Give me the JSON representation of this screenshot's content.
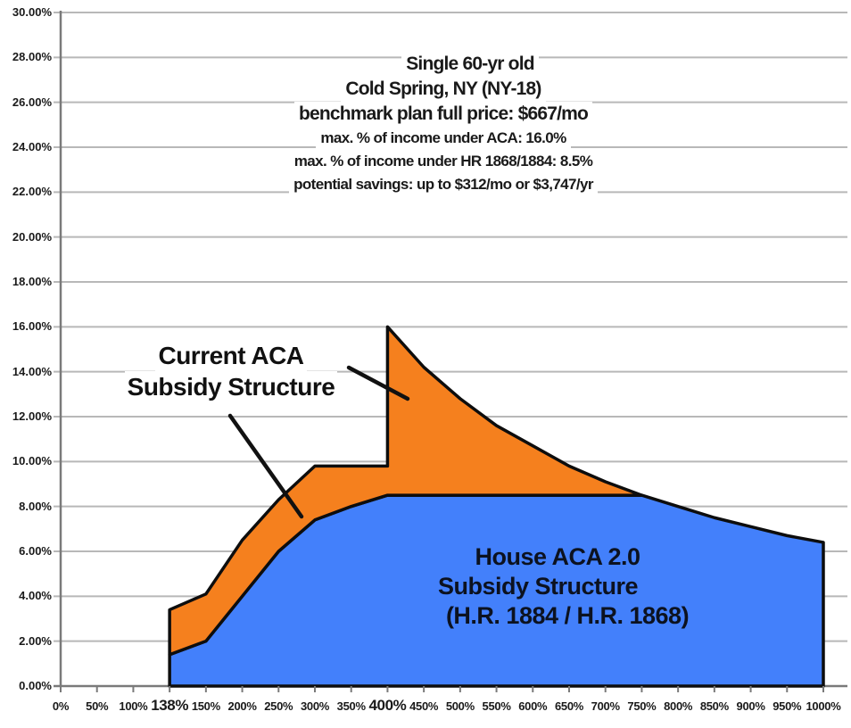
{
  "chart_data": {
    "type": "area",
    "title_lines": [
      "Single 60-yr old",
      "Cold Spring, NY (NY-18)",
      "benchmark plan full price: $667/mo",
      "max. % of income under ACA: 16.0%",
      "max. % of income under HR 1868/1884: 8.5%",
      "potential savings: up to $312/mo or $3,747/yr"
    ],
    "labels": {
      "current_aca": [
        "Current ACA",
        "Subsidy Structure"
      ],
      "house_aca": [
        "House ACA 2.0",
        "Subsidy Structure",
        "(H.R. 1884 / H.R. 1868)"
      ]
    },
    "y_axis": {
      "min": 0,
      "max": 30,
      "tick_step": 2,
      "tick_labels": [
        "0.00%",
        "2.00%",
        "4.00%",
        "6.00%",
        "8.00%",
        "10.00%",
        "12.00%",
        "14.00%",
        "16.00%",
        "18.00%",
        "20.00%",
        "22.00%",
        "24.00%",
        "26.00%",
        "28.00%",
        "30.00%"
      ],
      "grid": true
    },
    "x_axis": {
      "categories": [
        "0%",
        "50%",
        "100%",
        "138%",
        "150%",
        "200%",
        "250%",
        "300%",
        "350%",
        "400%",
        "450%",
        "500%",
        "550%",
        "600%",
        "650%",
        "700%",
        "750%",
        "800%",
        "850%",
        "900%",
        "950%",
        "1000%"
      ],
      "emphasized": [
        "138%",
        "400%"
      ]
    },
    "series": [
      {
        "name": "Current ACA Subsidy Structure",
        "color": "#F5801E",
        "points": [
          [
            "138%",
            3.4
          ],
          [
            "150%",
            4.1
          ],
          [
            "200%",
            6.5
          ],
          [
            "250%",
            8.3
          ],
          [
            "300%",
            9.8
          ],
          [
            "350%",
            9.8
          ],
          [
            "400%",
            9.8
          ],
          [
            "400%",
            16.0
          ],
          [
            "450%",
            14.2
          ],
          [
            "500%",
            12.8
          ],
          [
            "550%",
            11.6
          ],
          [
            "600%",
            10.7
          ],
          [
            "650%",
            9.8
          ],
          [
            "700%",
            9.1
          ],
          [
            "750%",
            8.5
          ]
        ]
      },
      {
        "name": "House ACA 2.0 Subsidy Structure (H.R. 1884 / H.R. 1868)",
        "color": "#4380FB",
        "points": [
          [
            "138%",
            1.4
          ],
          [
            "150%",
            2.0
          ],
          [
            "200%",
            4.0
          ],
          [
            "250%",
            6.0
          ],
          [
            "300%",
            7.4
          ],
          [
            "350%",
            8.0
          ],
          [
            "400%",
            8.5
          ],
          [
            "450%",
            8.5
          ],
          [
            "500%",
            8.5
          ],
          [
            "550%",
            8.5
          ],
          [
            "600%",
            8.5
          ],
          [
            "650%",
            8.5
          ],
          [
            "700%",
            8.5
          ],
          [
            "750%",
            8.5
          ],
          [
            "800%",
            8.0
          ],
          [
            "850%",
            7.5
          ],
          [
            "900%",
            7.1
          ],
          [
            "950%",
            6.7
          ],
          [
            "1000%",
            6.4
          ]
        ]
      }
    ],
    "merge_category": "750%",
    "style": {
      "grid_color": "#b8b8b8",
      "axis_color": "#7a7a7a",
      "outline_color": "#0d0d0d",
      "background": "#ffffff",
      "text_color": "#1a1a1a"
    }
  }
}
